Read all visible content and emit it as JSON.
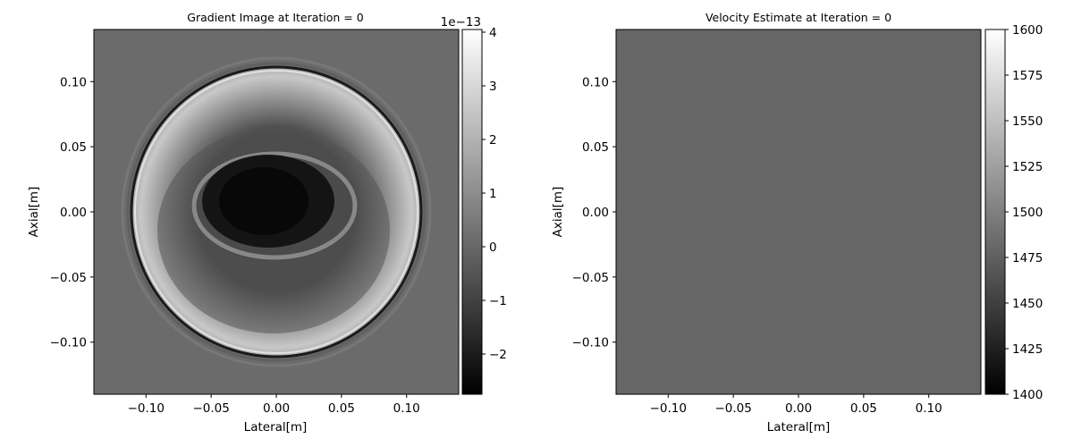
{
  "chart_data": [
    {
      "type": "heatmap",
      "title": "Gradient Image at Iteration = 0",
      "xlabel": "Lateral[m]",
      "ylabel": "Axial[m]",
      "xlim": [
        -0.14,
        0.14
      ],
      "ylim": [
        -0.14,
        0.14
      ],
      "x_ticks": [
        -0.1,
        -0.05,
        0.0,
        0.05,
        0.1
      ],
      "x_tick_labels": [
        "−0.10",
        "−0.05",
        "0.00",
        "0.05",
        "0.10"
      ],
      "y_ticks": [
        0.1,
        0.05,
        0.0,
        -0.05,
        -0.1
      ],
      "y_tick_labels": [
        "0.10",
        "0.05",
        "0.00",
        "−0.05",
        "−0.10"
      ],
      "colormap": "gray",
      "colorbar": {
        "range": [
          -2.75,
          4.05
        ],
        "ticks": [
          4,
          3,
          2,
          1,
          0,
          -1,
          -2
        ],
        "tick_labels": [
          "4",
          "3",
          "2",
          "1",
          "0",
          "−1",
          "−2"
        ],
        "offset_label": "1e−13"
      },
      "features": {
        "background_value": 0,
        "ring_radius_m": 0.113,
        "dark_core": {
          "center": [
            -0.005,
            0.01
          ],
          "radii_m": [
            0.055,
            0.045
          ],
          "value": -2.3
        },
        "bright_annulus_value": 1.8
      }
    },
    {
      "type": "heatmap",
      "title": "Velocity Estimate at Iteration = 0",
      "xlabel": "Lateral[m]",
      "ylabel": "Axial[m]",
      "xlim": [
        -0.14,
        0.14
      ],
      "ylim": [
        -0.14,
        0.14
      ],
      "x_ticks": [
        -0.1,
        -0.05,
        0.0,
        0.05,
        0.1
      ],
      "x_tick_labels": [
        "−0.10",
        "−0.05",
        "0.00",
        "0.05",
        "0.10"
      ],
      "y_ticks": [
        0.1,
        0.05,
        0.0,
        -0.05,
        -0.1
      ],
      "y_tick_labels": [
        "0.10",
        "0.05",
        "0.00",
        "−0.05",
        "−0.10"
      ],
      "colormap": "gray",
      "uniform_value": 1480,
      "colorbar": {
        "range": [
          1400,
          1600
        ],
        "ticks": [
          1600,
          1575,
          1550,
          1525,
          1500,
          1475,
          1450,
          1425,
          1400
        ],
        "tick_labels": [
          "1600",
          "1575",
          "1550",
          "1525",
          "1500",
          "1475",
          "1450",
          "1425",
          "1400"
        ]
      }
    }
  ]
}
